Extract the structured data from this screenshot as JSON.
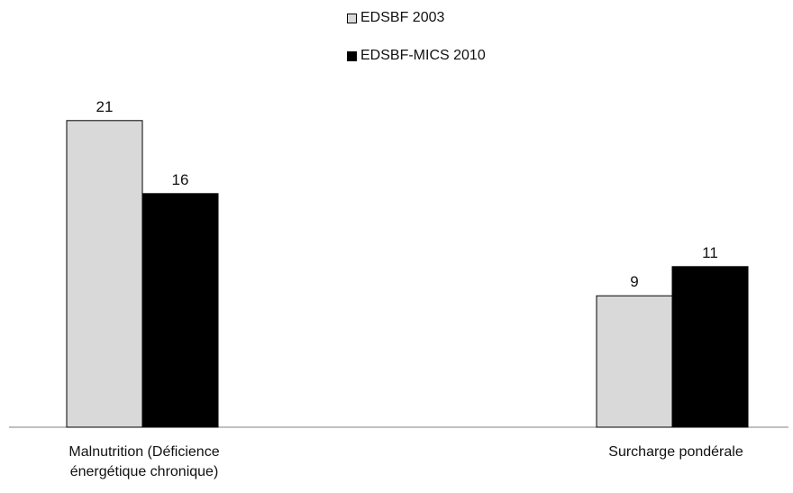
{
  "chart_data": {
    "type": "bar",
    "categories": [
      "Malnutrition (Déficience énergétique chronique)",
      "Surcharge pondérale"
    ],
    "category_lines": [
      [
        "Malnutrition (Déficience",
        "énergétique chronique)"
      ],
      [
        "Surcharge pondérale"
      ]
    ],
    "series": [
      {
        "name": "EDSBF 2003",
        "values": [
          21,
          9
        ],
        "color": "#d9d9d9"
      },
      {
        "name": "EDSBF-MICS 2010",
        "values": [
          16,
          11
        ],
        "color": "#000000"
      }
    ],
    "data_labels": [
      [
        "21",
        "9"
      ],
      [
        "16",
        "11"
      ]
    ],
    "title": "",
    "xlabel": "",
    "ylabel": "",
    "ylim": [
      0,
      25
    ],
    "grid": false,
    "legend_position": "top-center"
  }
}
